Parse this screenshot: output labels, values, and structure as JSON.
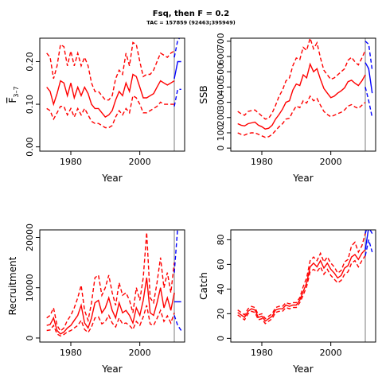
{
  "title": "Fsq, then F = 0.2",
  "subtitle": "TAC = 157859 (92463;395949)",
  "colors": {
    "historic": "#ff0000",
    "projection": "#0000ff",
    "marker": "#bebebe",
    "axis": "#000000"
  },
  "chart_data": [
    {
      "type": "line",
      "ylabel": "F̄ 3–7",
      "ylabel_main": "F",
      "ylabel_sub": "3–7",
      "xlabel": "Year",
      "xlim": [
        1971,
        2013
      ],
      "ylim": [
        -0.01,
        0.255
      ],
      "xticks": [
        1980,
        2000
      ],
      "xtick_labels": [
        "1980",
        "2000"
      ],
      "yticks": [
        0.0,
        0.1,
        0.2
      ],
      "ytick_labels": [
        "0.00",
        "0.10",
        "0.20"
      ],
      "marker_year": 2010,
      "historic": {
        "x": [
          1973,
          1974,
          1975,
          1976,
          1977,
          1978,
          1979,
          1980,
          1981,
          1982,
          1983,
          1984,
          1985,
          1986,
          1987,
          1988,
          1989,
          1990,
          1991,
          1992,
          1993,
          1994,
          1995,
          1996,
          1997,
          1998,
          1999,
          2000,
          2001,
          2002,
          2003,
          2004,
          2005,
          2006,
          2007,
          2008,
          2009,
          2010
        ],
        "median": [
          0.14,
          0.13,
          0.1,
          0.125,
          0.155,
          0.15,
          0.12,
          0.15,
          0.115,
          0.14,
          0.12,
          0.14,
          0.125,
          0.1,
          0.09,
          0.09,
          0.08,
          0.07,
          0.075,
          0.085,
          0.11,
          0.13,
          0.12,
          0.15,
          0.13,
          0.17,
          0.165,
          0.14,
          0.115,
          0.115,
          0.12,
          0.125,
          0.14,
          0.155,
          0.15,
          0.145,
          0.15,
          0.155
        ],
        "upper": [
          0.22,
          0.21,
          0.16,
          0.19,
          0.24,
          0.235,
          0.19,
          0.225,
          0.19,
          0.22,
          0.19,
          0.21,
          0.19,
          0.15,
          0.13,
          0.13,
          0.12,
          0.11,
          0.11,
          0.12,
          0.16,
          0.18,
          0.17,
          0.22,
          0.19,
          0.245,
          0.24,
          0.2,
          0.165,
          0.17,
          0.17,
          0.18,
          0.2,
          0.22,
          0.215,
          0.21,
          0.22,
          0.225
        ],
        "lower": [
          0.09,
          0.085,
          0.065,
          0.08,
          0.095,
          0.095,
          0.075,
          0.09,
          0.07,
          0.09,
          0.075,
          0.09,
          0.075,
          0.06,
          0.055,
          0.055,
          0.05,
          0.045,
          0.045,
          0.05,
          0.07,
          0.085,
          0.075,
          0.09,
          0.08,
          0.12,
          0.115,
          0.1,
          0.08,
          0.08,
          0.085,
          0.09,
          0.095,
          0.105,
          0.1,
          0.1,
          0.1,
          0.1
        ]
      },
      "projection": {
        "x": [
          2010,
          2011,
          2012
        ],
        "median": [
          0.16,
          0.2,
          0.2
        ],
        "upper": [
          0.21,
          0.25,
          0.26
        ],
        "lower": [
          0.095,
          0.135,
          0.135
        ]
      }
    },
    {
      "type": "line",
      "ylabel": "SSB",
      "xlabel": "Year",
      "xlim": [
        1971,
        2013
      ],
      "ylim": [
        -20,
        720
      ],
      "xticks": [
        1980,
        2000
      ],
      "xtick_labels": [
        "1980",
        "2000"
      ],
      "yticks": [
        0,
        100,
        200,
        300,
        400,
        500,
        600,
        700
      ],
      "ytick_labels": [
        "0",
        "100",
        "200",
        "300",
        "400",
        "500",
        "600",
        "700"
      ],
      "marker_year": 2010,
      "historic": {
        "x": [
          1973,
          1974,
          1975,
          1976,
          1977,
          1978,
          1979,
          1980,
          1981,
          1982,
          1983,
          1984,
          1985,
          1986,
          1987,
          1988,
          1989,
          1990,
          1991,
          1992,
          1993,
          1994,
          1995,
          1996,
          1997,
          1998,
          1999,
          2000,
          2001,
          2002,
          2003,
          2004,
          2005,
          2006,
          2007,
          2008,
          2009,
          2010
        ],
        "median": [
          160,
          150,
          145,
          160,
          165,
          170,
          150,
          140,
          125,
          130,
          150,
          190,
          220,
          255,
          300,
          310,
          380,
          420,
          410,
          480,
          460,
          550,
          500,
          520,
          450,
          390,
          360,
          330,
          340,
          360,
          375,
          395,
          435,
          445,
          425,
          410,
          440,
          480
        ],
        "upper": [
          240,
          225,
          215,
          240,
          245,
          250,
          230,
          210,
          190,
          195,
          230,
          280,
          340,
          380,
          440,
          460,
          540,
          590,
          580,
          660,
          640,
          720,
          650,
          690,
          590,
          510,
          480,
          450,
          460,
          480,
          500,
          520,
          575,
          595,
          565,
          545,
          590,
          640
        ],
        "lower": [
          100,
          90,
          85,
          95,
          100,
          100,
          90,
          80,
          70,
          75,
          90,
          115,
          140,
          160,
          190,
          195,
          240,
          275,
          265,
          310,
          295,
          340,
          310,
          325,
          280,
          240,
          220,
          205,
          215,
          225,
          235,
          250,
          275,
          285,
          270,
          260,
          280,
          300
        ]
      },
      "projection": {
        "x": [
          2010,
          2011,
          2012
        ],
        "median": [
          560,
          520,
          360
        ],
        "upper": [
          700,
          680,
          510
        ],
        "lower": [
          400,
          310,
          200
        ]
      }
    },
    {
      "type": "line",
      "ylabel": "Recruitment",
      "xlabel": "Year",
      "xlim": [
        1971,
        2013
      ],
      "ylim": [
        -800,
        21500
      ],
      "xticks": [
        1980,
        2000
      ],
      "xtick_labels": [
        "1980",
        "2000"
      ],
      "yticks": [
        0,
        10000,
        20000
      ],
      "ytick_labels": [
        "0",
        "10000",
        "20000"
      ],
      "marker_year": 2010,
      "historic": {
        "x": [
          1973,
          1974,
          1975,
          1976,
          1977,
          1978,
          1979,
          1980,
          1981,
          1982,
          1983,
          1984,
          1985,
          1986,
          1987,
          1988,
          1989,
          1990,
          1991,
          1992,
          1993,
          1994,
          1995,
          1996,
          1997,
          1998,
          1999,
          2000,
          2001,
          2002,
          2003,
          2004,
          2005,
          2006,
          2007,
          2008,
          2009,
          2010
        ],
        "median": [
          2500,
          2700,
          4000,
          1500,
          800,
          1200,
          2000,
          2500,
          3500,
          4500,
          6500,
          3000,
          2000,
          4000,
          7000,
          7500,
          5000,
          6000,
          8000,
          5500,
          4000,
          7000,
          5000,
          5500,
          4500,
          3000,
          6000,
          4500,
          7500,
          12000,
          5000,
          4500,
          7000,
          10000,
          6000,
          8000,
          5500,
          9000
        ],
        "upper": [
          4000,
          4500,
          6000,
          2500,
          1400,
          2000,
          3500,
          4500,
          6000,
          8000,
          10500,
          5500,
          3500,
          7000,
          12000,
          12500,
          8500,
          10000,
          12500,
          9000,
          6500,
          11000,
          8500,
          9000,
          7500,
          5000,
          10000,
          7500,
          12000,
          21000,
          8000,
          7000,
          11000,
          16000,
          10000,
          13000,
          9000,
          15000
        ],
        "lower": [
          1500,
          1600,
          2500,
          800,
          400,
          700,
          1200,
          1500,
          2000,
          2500,
          3500,
          1700,
          1100,
          2200,
          4000,
          4200,
          2800,
          3300,
          4500,
          3000,
          2200,
          4000,
          2800,
          3000,
          2500,
          1700,
          3300,
          2500,
          4200,
          6500,
          2800,
          2500,
          3900,
          5500,
          3300,
          4400,
          3000,
          5000
        ]
      },
      "projection": {
        "x": [
          2010,
          2011,
          2012
        ],
        "median": [
          7200,
          7200,
          7200
        ],
        "upper": [
          13000,
          22000,
          22000
        ],
        "lower": [
          4500,
          2500,
          1500
        ]
      }
    },
    {
      "type": "line",
      "ylabel": "Catch",
      "xlabel": "Year",
      "xlim": [
        1971,
        2013
      ],
      "ylim": [
        -3,
        88
      ],
      "xticks": [
        1980,
        2000
      ],
      "xtick_labels": [
        "1980",
        "2000"
      ],
      "yticks": [
        0,
        20,
        40,
        60,
        80
      ],
      "ytick_labels": [
        "0",
        "20",
        "40",
        "60",
        "80"
      ],
      "marker_year": 2010,
      "historic": {
        "x": [
          1973,
          1974,
          1975,
          1976,
          1977,
          1978,
          1979,
          1980,
          1981,
          1982,
          1983,
          1984,
          1985,
          1986,
          1987,
          1988,
          1989,
          1990,
          1991,
          1992,
          1993,
          1994,
          1995,
          1996,
          1997,
          1998,
          1999,
          2000,
          2001,
          2002,
          2003,
          2004,
          2005,
          2006,
          2007,
          2008,
          2009,
          2010
        ],
        "median": [
          21,
          19,
          17,
          22,
          24,
          23,
          17,
          18,
          14,
          16,
          18,
          23,
          24,
          24,
          27,
          26,
          27,
          27,
          31,
          38,
          45,
          58,
          61,
          58,
          63,
          57,
          61,
          56,
          53,
          49,
          51,
          57,
          59,
          66,
          68,
          64,
          69,
          72
        ],
        "upper": [
          23,
          21,
          19,
          24,
          26,
          25,
          19,
          20,
          16,
          18,
          20,
          25,
          26,
          26,
          29,
          28,
          29,
          29,
          33,
          42,
          49,
          63,
          66,
          63,
          69,
          62,
          66,
          61,
          58,
          53,
          55,
          62,
          64,
          75,
          78,
          70,
          75,
          85
        ],
        "lower": [
          19,
          17,
          15,
          20,
          22,
          21,
          15,
          16,
          12,
          14,
          16,
          21,
          22,
          22,
          25,
          24,
          25,
          25,
          29,
          35,
          42,
          54,
          56,
          54,
          58,
          52,
          56,
          51,
          48,
          45,
          47,
          52,
          54,
          61,
          63,
          58,
          63,
          67
        ]
      },
      "projection": {
        "x": [
          2010,
          2011,
          2012
        ],
        "median": [
          72,
          90,
          85
        ],
        "upper": [
          85,
          95,
          95
        ],
        "lower": [
          67,
          80,
          70
        ]
      }
    }
  ]
}
